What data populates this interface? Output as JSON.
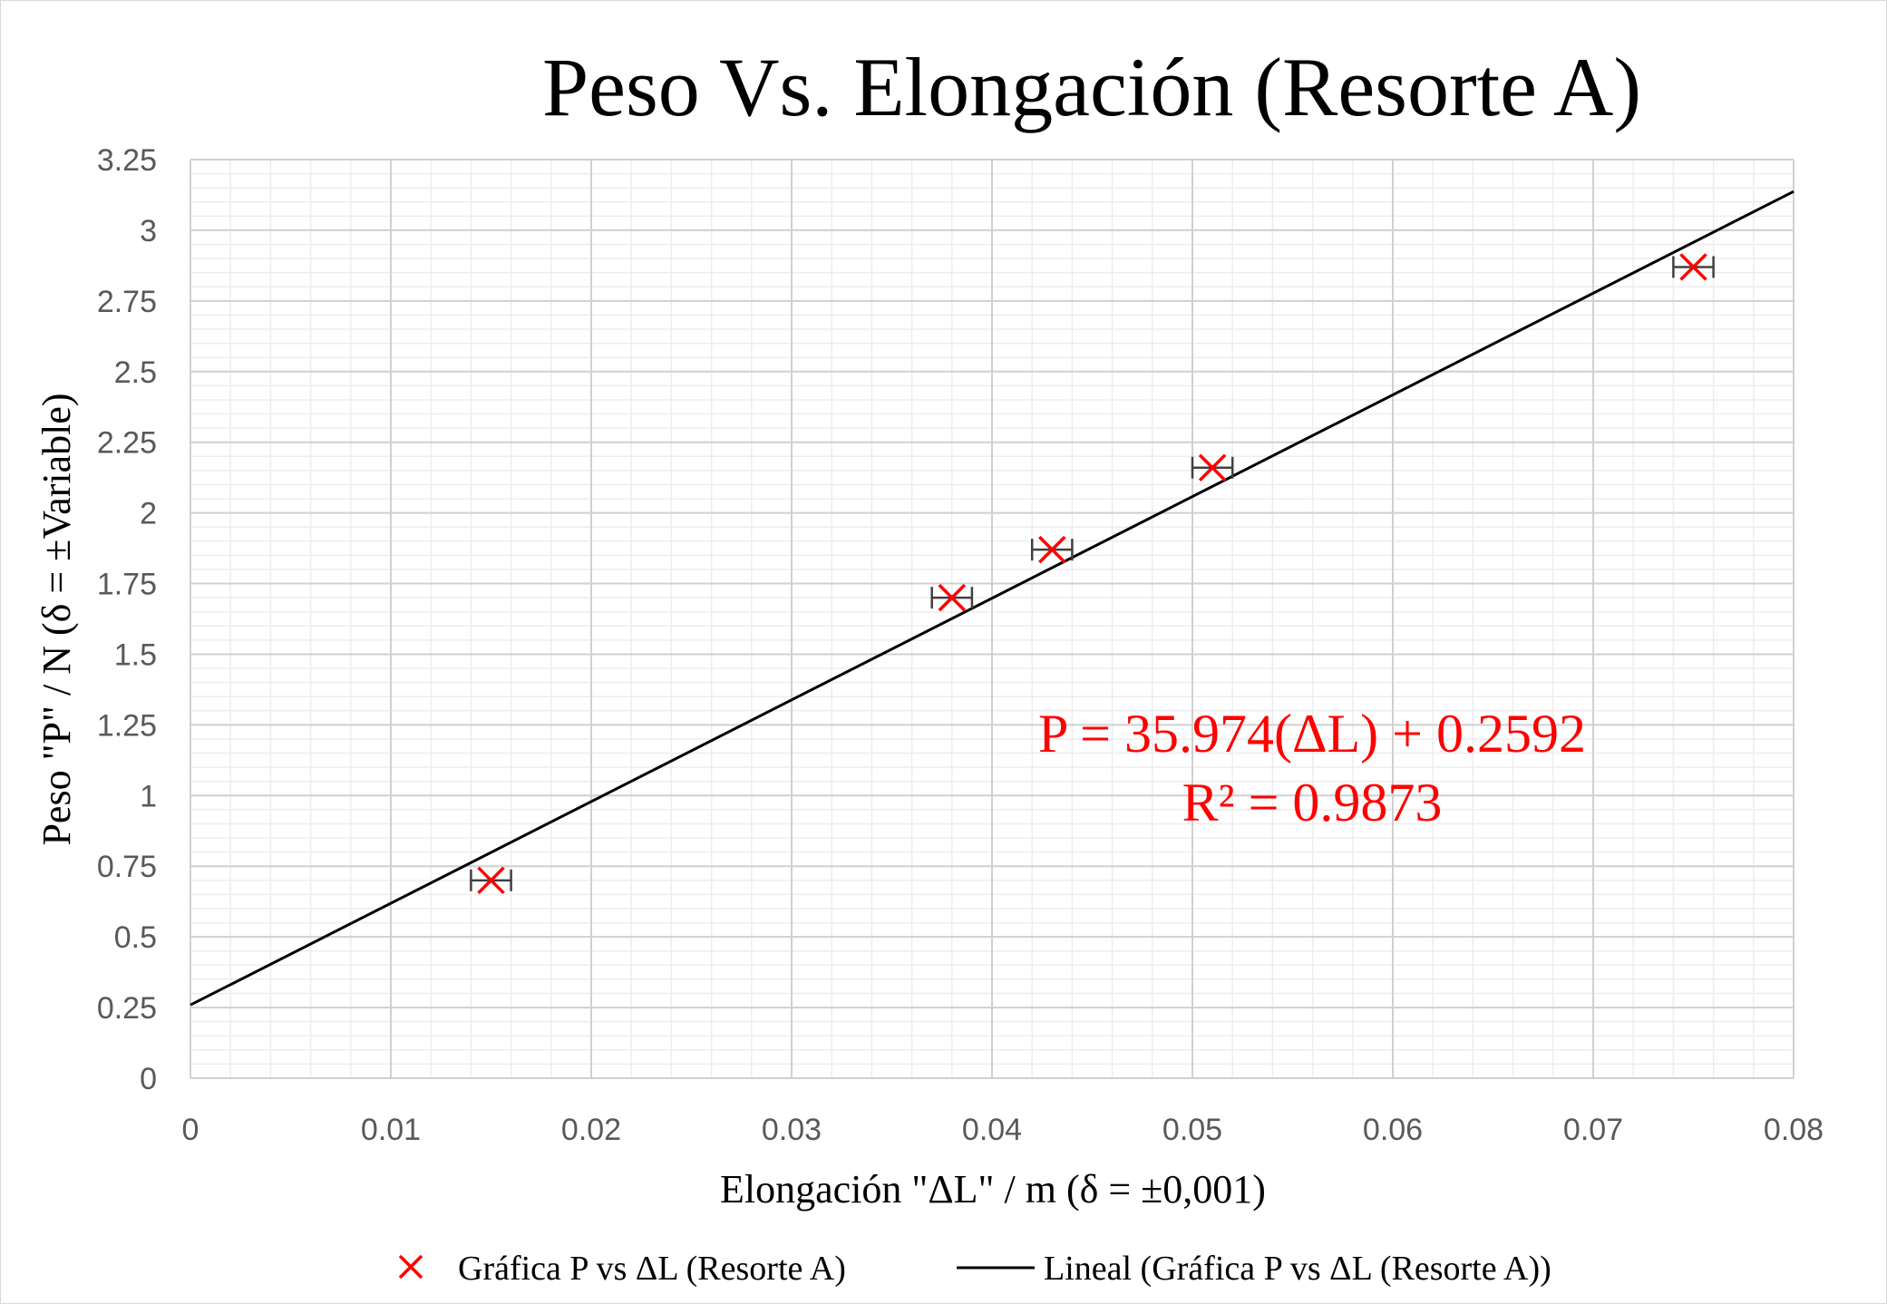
{
  "chart_data": {
    "type": "scatter",
    "title": "Peso Vs. Elongación (Resorte A)",
    "xlabel": "Elongación \"ΔL\" / m (δ = ±0,001)",
    "ylabel": "Peso \"P\" / N (δ = ±Variable)",
    "xlim": [
      0,
      0.08
    ],
    "ylim": [
      0,
      3.25
    ],
    "x_ticks": [
      "0",
      "0.01",
      "0.02",
      "0.03",
      "0.04",
      "0.05",
      "0.06",
      "0.07",
      "0.08"
    ],
    "y_ticks": [
      "0",
      "0.25",
      "0.5",
      "0.75",
      "1",
      "1.25",
      "1.5",
      "1.75",
      "2",
      "2.25",
      "2.5",
      "2.75",
      "3",
      "3.25"
    ],
    "x_tick_values": [
      0,
      0.01,
      0.02,
      0.03,
      0.04,
      0.05,
      0.06,
      0.07,
      0.08
    ],
    "y_tick_values": [
      0,
      0.25,
      0.5,
      0.75,
      1,
      1.25,
      1.5,
      1.75,
      2,
      2.25,
      2.5,
      2.75,
      3,
      3.25
    ],
    "grid": true,
    "series": [
      {
        "name": "Gráfica P vs ΔL (Resorte A)",
        "color": "#ff0000",
        "marker": "x",
        "x": [
          0.015,
          0.038,
          0.043,
          0.051,
          0.075
        ],
        "y": [
          0.7,
          1.7,
          1.87,
          2.16,
          2.87
        ],
        "x_error": 0.001
      }
    ],
    "trendline": {
      "name": "Lineal (Gráfica P vs ΔL (Resorte A))",
      "color": "#000000",
      "slope": 35.974,
      "intercept": 0.2592
    },
    "annotations": [
      "P = 35.974(ΔL) + 0.2592",
      "R² = 0.9873"
    ],
    "annotation_color": "#ff0000",
    "legend_position": "bottom"
  }
}
